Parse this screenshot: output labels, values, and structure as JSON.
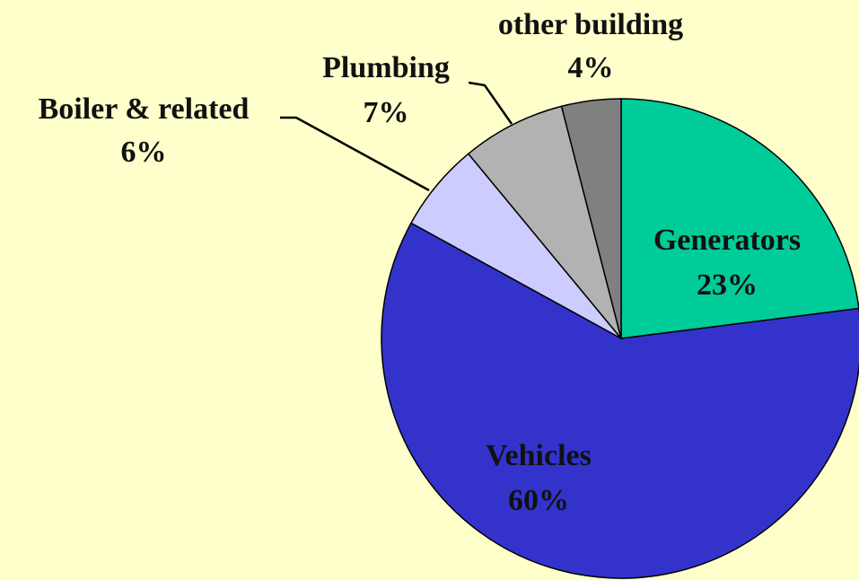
{
  "chart_data": {
    "type": "pie",
    "categories": [
      "Generators",
      "Vehicles",
      "Boiler & related",
      "Plumbing",
      "other building"
    ],
    "values": [
      23,
      60,
      6,
      7,
      4
    ],
    "value_labels": [
      "23%",
      "60%",
      "6%",
      "7%",
      "4%"
    ],
    "colors": [
      "#00cc99",
      "#3333cc",
      "#ccccff",
      "#b2b2b2",
      "#808080"
    ]
  }
}
